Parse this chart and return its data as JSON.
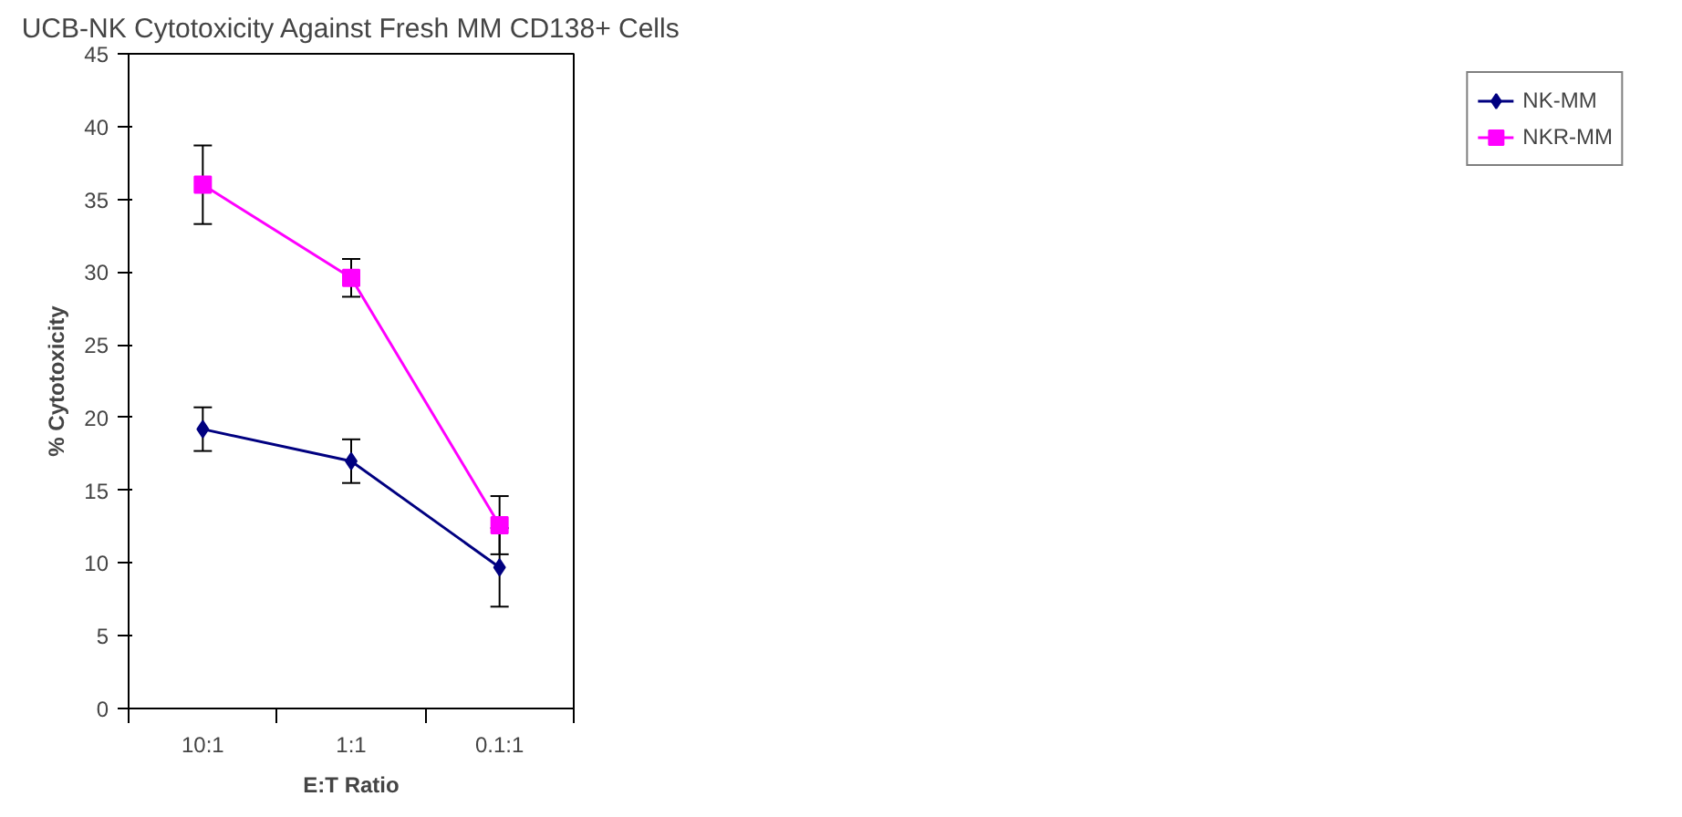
{
  "chart_data": {
    "type": "line",
    "title": "UCB-NK Cytotoxicity Against Fresh MM CD138+ Cells",
    "xlabel": "E:T Ratio",
    "ylabel": "% Cytotoxicity",
    "categories": [
      "10:1",
      "1:1",
      "0.1:1"
    ],
    "series": [
      {
        "name": "NK-MM",
        "color": "#000080",
        "marker": "diamond",
        "values": [
          19.2,
          17,
          9.7
        ],
        "errors": [
          1.5,
          1.5,
          2.7
        ]
      },
      {
        "name": "NKR-MM",
        "color": "#ff00ff",
        "marker": "square",
        "values": [
          36,
          29.6,
          12.6
        ],
        "errors": [
          2.7,
          1.3,
          2
        ]
      }
    ],
    "ylim": [
      0,
      45
    ],
    "yticks": [
      0,
      5,
      10,
      15,
      20,
      25,
      30,
      35,
      40,
      45
    ],
    "grid": false,
    "legend": "right"
  }
}
